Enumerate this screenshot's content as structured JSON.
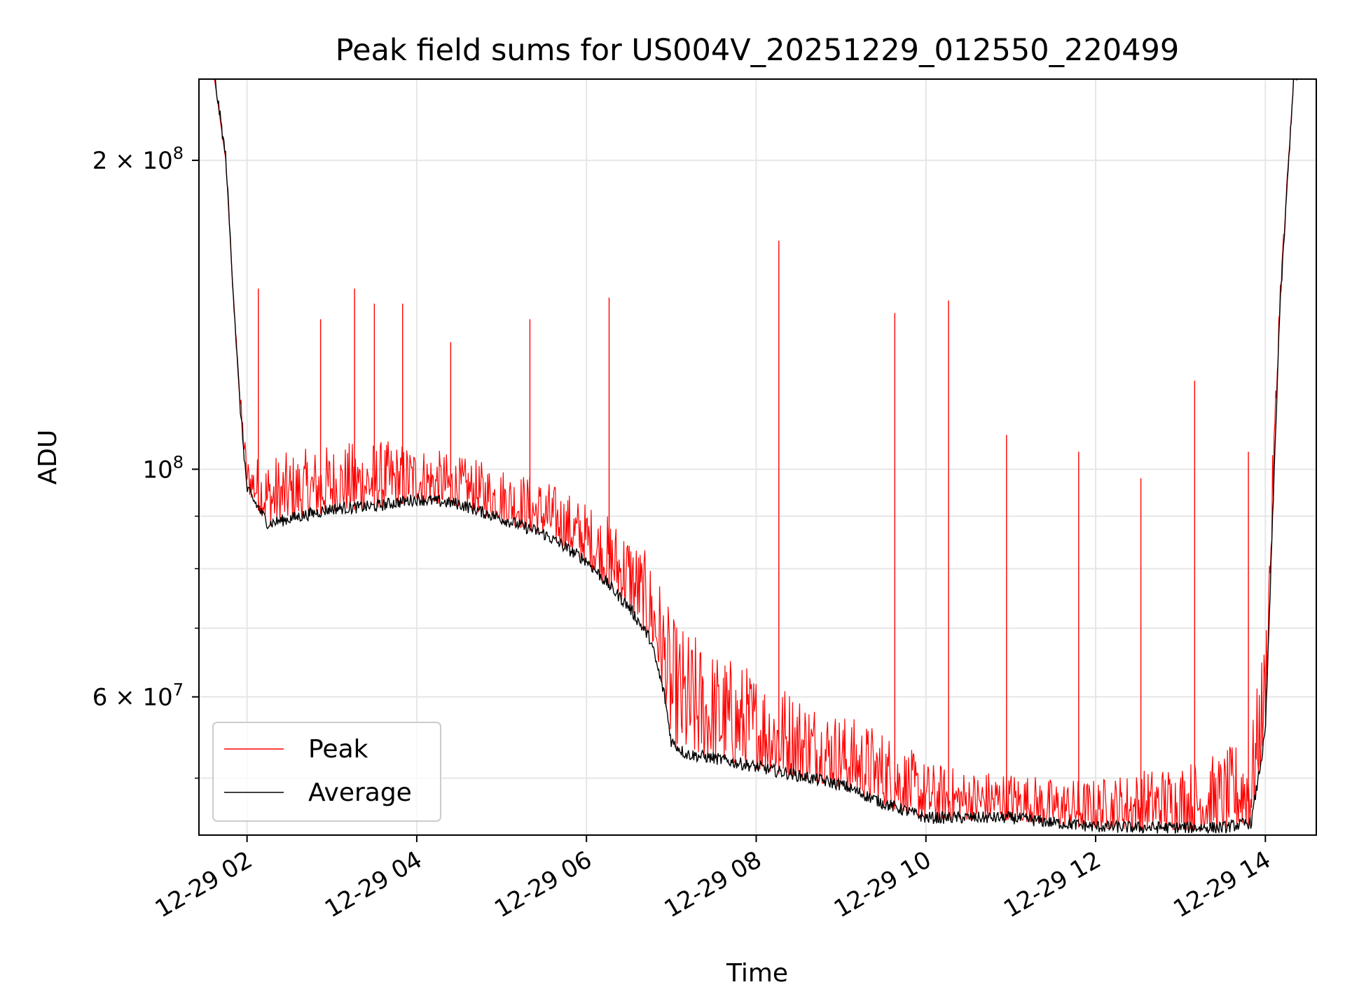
{
  "chart_data": {
    "type": "line",
    "title": "Peak field sums for US004V_20251229_012550_220499",
    "xlabel": "Time",
    "ylabel": "ADU",
    "y_scale": "log",
    "ylim": [
      44000000,
      240000000
    ],
    "xlim": [
      "2025-12-29 01:26",
      "2025-12-29 14:36"
    ],
    "grid": true,
    "legend_position": "lower-left",
    "x_ticks": [
      {
        "value": "2025-12-29 02:00",
        "label": "12-29 02"
      },
      {
        "value": "2025-12-29 04:00",
        "label": "12-29 04"
      },
      {
        "value": "2025-12-29 06:00",
        "label": "12-29 06"
      },
      {
        "value": "2025-12-29 08:00",
        "label": "12-29 08"
      },
      {
        "value": "2025-12-29 10:00",
        "label": "12-29 10"
      },
      {
        "value": "2025-12-29 12:00",
        "label": "12-29 12"
      },
      {
        "value": "2025-12-29 14:00",
        "label": "12-29 14"
      }
    ],
    "y_ticks": [
      {
        "value": 60000000,
        "base": "6 × 10",
        "exp": "7"
      },
      {
        "value": 100000000,
        "base": "10",
        "exp": "8"
      },
      {
        "value": 200000000,
        "base": "2 × 10",
        "exp": "8"
      }
    ],
    "y_minor_ticks": [
      50000000,
      70000000,
      80000000,
      90000000
    ],
    "series": [
      {
        "name": "Peak",
        "color": "#ff0000",
        "x": [
          "2025-12-29 01:37",
          "2025-12-29 01:45",
          "2025-12-29 01:50",
          "2025-12-29 01:55",
          "2025-12-29 02:00",
          "2025-12-29 02:30",
          "2025-12-29 03:00",
          "2025-12-29 03:30",
          "2025-12-29 04:00",
          "2025-12-29 04:30",
          "2025-12-29 05:00",
          "2025-12-29 05:30",
          "2025-12-29 06:00",
          "2025-12-29 06:30",
          "2025-12-29 06:50",
          "2025-12-29 07:00",
          "2025-12-29 07:30",
          "2025-12-29 08:00",
          "2025-12-29 08:30",
          "2025-12-29 09:00",
          "2025-12-29 09:30",
          "2025-12-29 10:00",
          "2025-12-29 10:30",
          "2025-12-29 11:00",
          "2025-12-29 11:30",
          "2025-12-29 12:00",
          "2025-12-29 12:30",
          "2025-12-29 13:00",
          "2025-12-29 13:30",
          "2025-12-29 13:50",
          "2025-12-29 14:00",
          "2025-12-29 14:10",
          "2025-12-29 14:20"
        ],
        "y": [
          240000000,
          200000000,
          150000000,
          120000000,
          103000000,
          104000000,
          106000000,
          107000000,
          106000000,
          103000000,
          101000000,
          98000000,
          93000000,
          88000000,
          80000000,
          72000000,
          67000000,
          64000000,
          61000000,
          58000000,
          56000000,
          52000000,
          51000000,
          51000000,
          50000000,
          50000000,
          51000000,
          52000000,
          53000000,
          56000000,
          70000000,
          150000000,
          240000000
        ],
        "spikes": [
          [
            "2025-12-29 02:08",
            150000000
          ],
          [
            "2025-12-29 02:52",
            140000000
          ],
          [
            "2025-12-29 03:16",
            150000000
          ],
          [
            "2025-12-29 03:30",
            145000000
          ],
          [
            "2025-12-29 03:50",
            145000000
          ],
          [
            "2025-12-29 04:24",
            133000000
          ],
          [
            "2025-12-29 05:20",
            140000000
          ],
          [
            "2025-12-29 06:16",
            147000000
          ],
          [
            "2025-12-29 08:16",
            167000000
          ],
          [
            "2025-12-29 09:38",
            142000000
          ],
          [
            "2025-12-29 10:16",
            146000000
          ],
          [
            "2025-12-29 10:57",
            108000000
          ],
          [
            "2025-12-29 11:48",
            104000000
          ],
          [
            "2025-12-29 12:32",
            98000000
          ],
          [
            "2025-12-29 13:10",
            122000000
          ],
          [
            "2025-12-29 13:48",
            104000000
          ]
        ]
      },
      {
        "name": "Average",
        "color": "#000000",
        "x": [
          "2025-12-29 01:37",
          "2025-12-29 01:45",
          "2025-12-29 01:50",
          "2025-12-29 01:55",
          "2025-12-29 02:00",
          "2025-12-29 02:15",
          "2025-12-29 03:00",
          "2025-12-29 03:30",
          "2025-12-29 04:00",
          "2025-12-29 04:30",
          "2025-12-29 05:00",
          "2025-12-29 05:30",
          "2025-12-29 06:00",
          "2025-12-29 06:30",
          "2025-12-29 06:45",
          "2025-12-29 06:55",
          "2025-12-29 07:00",
          "2025-12-29 07:10",
          "2025-12-29 07:30",
          "2025-12-29 08:00",
          "2025-12-29 08:30",
          "2025-12-29 09:00",
          "2025-12-29 09:30",
          "2025-12-29 09:50",
          "2025-12-29 10:00",
          "2025-12-29 10:30",
          "2025-12-29 11:00",
          "2025-12-29 11:30",
          "2025-12-29 12:00",
          "2025-12-29 12:30",
          "2025-12-29 13:00",
          "2025-12-29 13:30",
          "2025-12-29 13:50",
          "2025-12-29 14:00",
          "2025-12-29 14:10",
          "2025-12-29 14:20"
        ],
        "y": [
          240000000,
          200000000,
          150000000,
          115000000,
          95000000,
          88000000,
          91000000,
          91500000,
          93000000,
          92000000,
          89000000,
          86000000,
          81000000,
          73000000,
          68000000,
          60000000,
          54000000,
          52500000,
          52000000,
          51000000,
          50000000,
          49000000,
          47000000,
          46000000,
          45500000,
          45500000,
          45500000,
          45000000,
          44600000,
          44500000,
          44500000,
          44500000,
          45000000,
          55000000,
          140000000,
          240000000
        ]
      }
    ]
  }
}
